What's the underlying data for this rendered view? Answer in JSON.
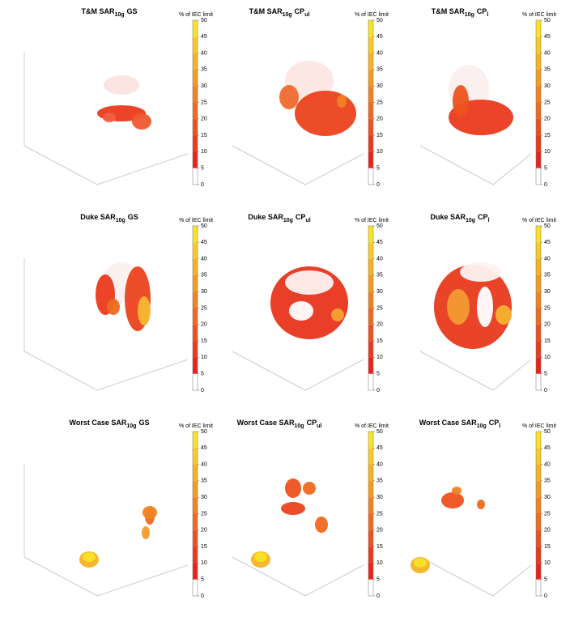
{
  "panels": [
    {
      "title": {
        "prefix": "T&M SAR",
        "sub": "10g",
        "suffix": "GS"
      }
    },
    {
      "title": {
        "prefix": "T&M SAR",
        "sub": "10g",
        "suffix": "CP",
        "suffix_sub": "ul"
      }
    },
    {
      "title": {
        "prefix": "T&M SAR",
        "sub": "10g",
        "suffix": "CP",
        "suffix_sub": "l"
      }
    },
    {
      "title": {
        "prefix": "Duke SAR",
        "sub": "10g",
        "suffix": "GS"
      }
    },
    {
      "title": {
        "prefix": "Duke SAR",
        "sub": "10g",
        "suffix": "CP",
        "suffix_sub": "ul"
      }
    },
    {
      "title": {
        "prefix": "Duke SAR",
        "sub": "10g",
        "suffix": "CP",
        "suffix_sub": "l"
      }
    },
    {
      "title": {
        "prefix": "Worst Case SAR",
        "sub": "10g",
        "suffix": "GS"
      }
    },
    {
      "title": {
        "prefix": "Worst Case SAR",
        "sub": "10g",
        "suffix": "CP",
        "suffix_sub": "ul"
      }
    },
    {
      "title": {
        "prefix": "Worst Case SAR",
        "sub": "10g",
        "suffix": "CP",
        "suffix_sub": "l"
      }
    }
  ],
  "colorbar": {
    "label": "% of IEC limit",
    "lim": [
      0,
      50
    ],
    "ticks": [
      0,
      5,
      10,
      15,
      20,
      25,
      30,
      35,
      40,
      45,
      50
    ],
    "colors": [
      "#ffffff",
      "#e8231c",
      "#ea3a1d",
      "#ec521e",
      "#ef6a1f",
      "#f18220",
      "#f39a21",
      "#f5b222",
      "#f8ca23",
      "#fae224"
    ]
  }
}
